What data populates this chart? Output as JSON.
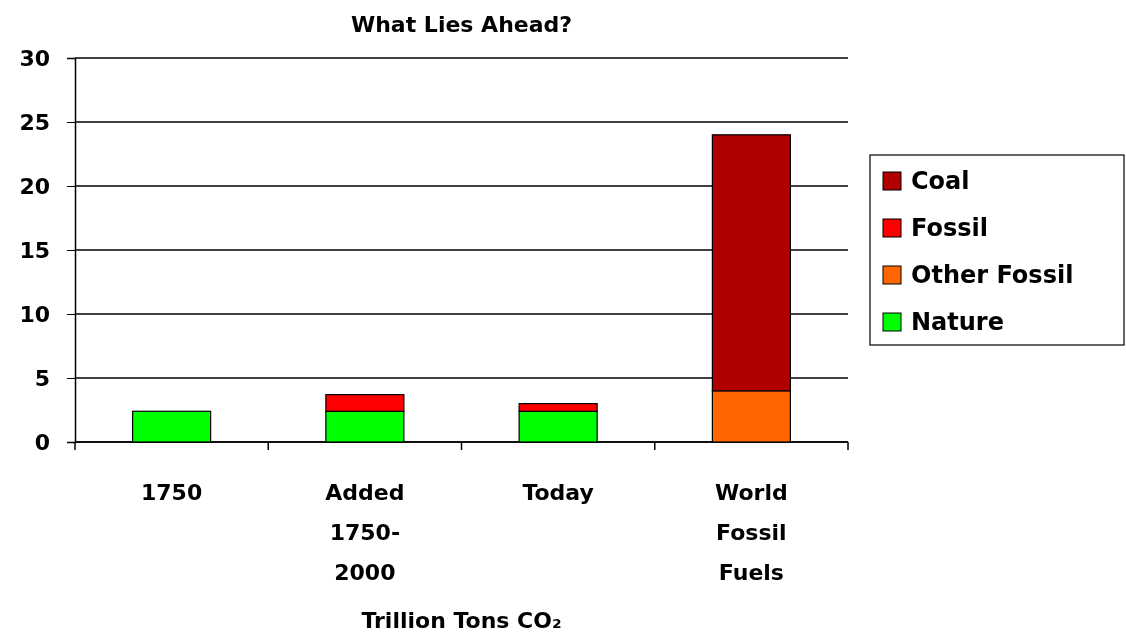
{
  "chart_data": {
    "type": "bar",
    "title": "What Lies Ahead?",
    "xlabel": "Trillion Tons CO₂",
    "categories": [
      "1750",
      "Added 1750-2000",
      "Today",
      "World Fossil Fuels"
    ],
    "stacked": true,
    "series": [
      {
        "name": "Nature",
        "color": "#00ff00",
        "values": [
          2.4,
          2.4,
          2.4,
          null
        ]
      },
      {
        "name": "Other Fossil",
        "color": "#ff6600",
        "values": [
          null,
          null,
          null,
          4
        ]
      },
      {
        "name": "Fossil",
        "color": "#ff0000",
        "values": [
          null,
          1.3,
          0.6,
          null
        ]
      },
      {
        "name": "Coal",
        "color": "#b00000",
        "values": [
          null,
          null,
          null,
          20
        ]
      }
    ],
    "ylim": [
      0,
      30
    ],
    "yticks": [
      0,
      5,
      10,
      15,
      20,
      25,
      30
    ],
    "grid": "y",
    "legend": "right"
  }
}
